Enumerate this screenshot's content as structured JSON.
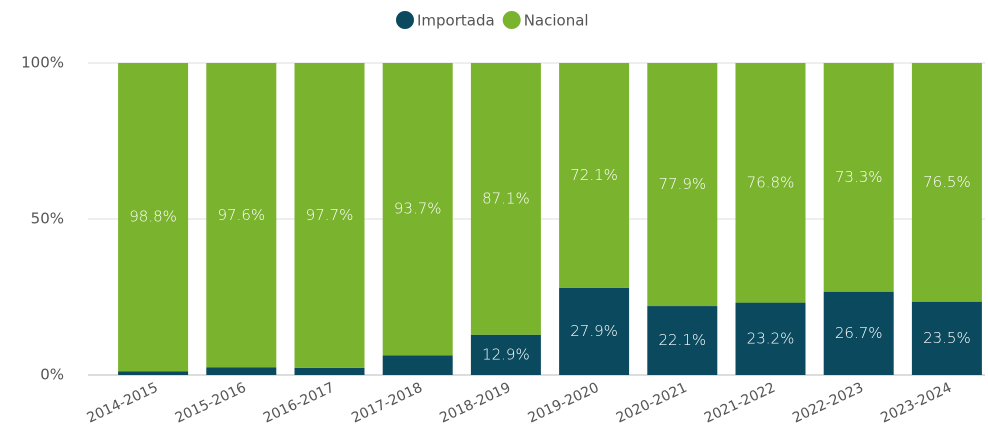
{
  "chart_data": {
    "type": "stacked_bar",
    "categories": [
      "2014-2015",
      "2015-2016",
      "2016-2017",
      "2017-2018",
      "2018-2019",
      "2019-2020",
      "2020-2021",
      "2021-2022",
      "2022-2023",
      "2023-2024"
    ],
    "series": [
      {
        "name": "Importada",
        "color": "#0b4a5e",
        "values": [
          1.2,
          2.4,
          2.3,
          6.3,
          12.9,
          27.9,
          22.1,
          23.2,
          26.7,
          23.5
        ],
        "value_labels": [
          null,
          null,
          null,
          null,
          "12.9%",
          "27.9%",
          "22.1%",
          "23.2%",
          "26.7%",
          "23.5%"
        ]
      },
      {
        "name": "Nacional",
        "color": "#7ab32e",
        "values": [
          98.8,
          97.6,
          97.7,
          93.7,
          87.1,
          72.1,
          77.9,
          76.8,
          73.3,
          76.5
        ],
        "value_labels": [
          "98.8%",
          "97.6%",
          "97.7%",
          "93.7%",
          "87.1%",
          "72.1%",
          "77.9%",
          "76.8%",
          "73.3%",
          "76.5%"
        ]
      }
    ],
    "ylim": [
      0,
      100
    ],
    "yticks": [
      {
        "value": 0,
        "label": "0%"
      },
      {
        "value": 50,
        "label": "50%"
      },
      {
        "value": 100,
        "label": "100%"
      }
    ],
    "grid": true,
    "legend": "top"
  }
}
